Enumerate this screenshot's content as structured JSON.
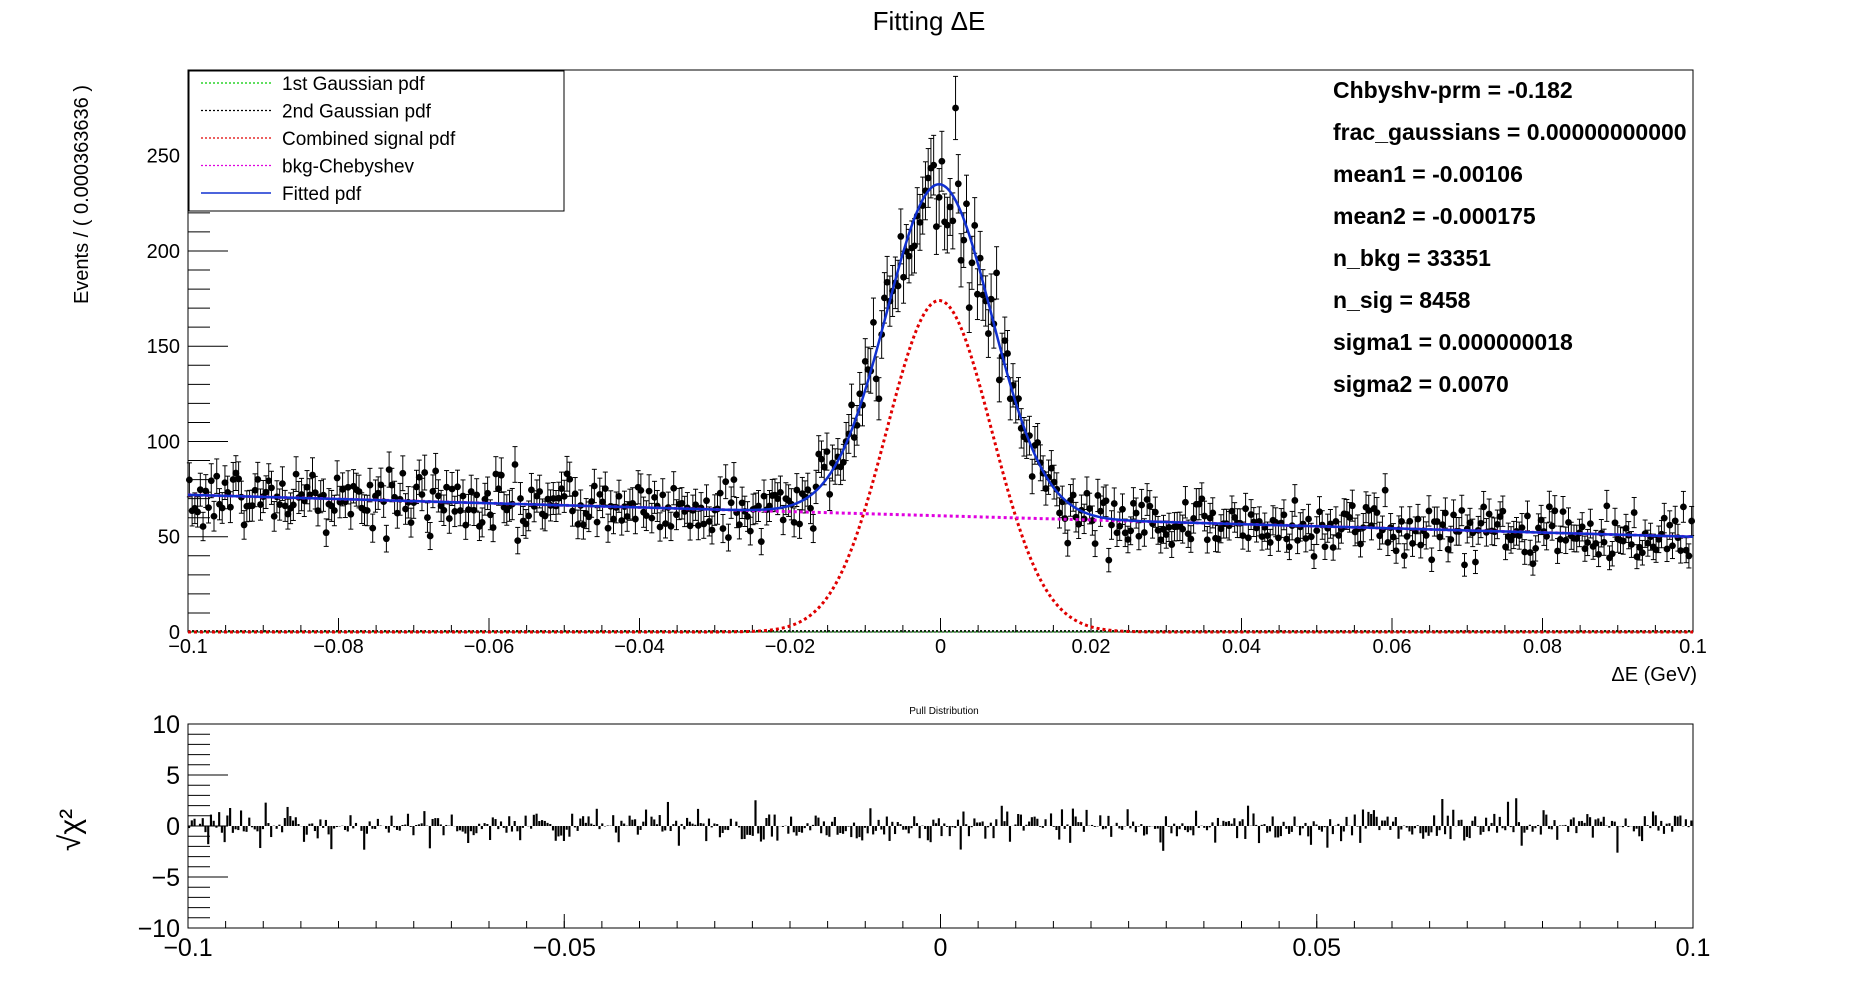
{
  "chart_data": [
    {
      "type": "scatter",
      "title": "Fitting ΔE",
      "xlabel": "ΔE (GeV)",
      "ylabel": "Events / ( 0.000363636 )",
      "xlim": [
        -0.1,
        0.1
      ],
      "ylim": [
        0,
        295
      ],
      "x_ticks": [
        "−0.1",
        "−0.08",
        "−0.06",
        "−0.04",
        "−0.02",
        "0",
        "0.02",
        "0.04",
        "0.06",
        "0.08",
        "0.1"
      ],
      "y_ticks": [
        "0",
        "50",
        "100",
        "150",
        "200",
        "250"
      ],
      "legend_position": "top-left",
      "legend": [
        {
          "label": "1st Gaussian pdf",
          "color": "#00cc00",
          "style": "dotted"
        },
        {
          "label": "2nd Gaussian pdf",
          "color": "#000000",
          "style": "dotted"
        },
        {
          "label": "Combined signal pdf",
          "color": "#e00000",
          "style": "dotted"
        },
        {
          "label": "bkg-Chebyshev",
          "color": "#e000e0",
          "style": "dotted"
        },
        {
          "label": "Fitted pdf",
          "color": "#1030d0",
          "style": "solid"
        }
      ],
      "fit_parameters": [
        "Chbyshv-prm = -0.182",
        "frac_gaussians =  0.00000000000",
        "mean1 = -0.00106",
        "mean2 = -0.000175",
        "n_bkg =  33351",
        "n_sig =  8458",
        "sigma1 =  0.000000018",
        "sigma2 =  0.0070"
      ],
      "model": {
        "background": {
          "x": [
            -0.1,
            0.1
          ],
          "y": [
            72,
            50
          ]
        },
        "signal": {
          "mean": -0.000175,
          "sigma": 0.007,
          "peak": 174
        }
      },
      "data_points": {
        "x_start": -0.1,
        "x_end": 0.1,
        "n_bins": 550,
        "y_values_note": "sampled around background + signal with noise"
      }
    },
    {
      "type": "bar",
      "title": "Pull Distribution",
      "ylabel": "√χ²",
      "xlim": [
        -0.1,
        0.1
      ],
      "ylim": [
        -10,
        10
      ],
      "x_ticks": [
        "−0.1",
        "−0.05",
        "0",
        "0.05",
        "0.1"
      ],
      "y_ticks": [
        "10",
        "5",
        "0",
        "−5",
        "−10"
      ]
    }
  ]
}
